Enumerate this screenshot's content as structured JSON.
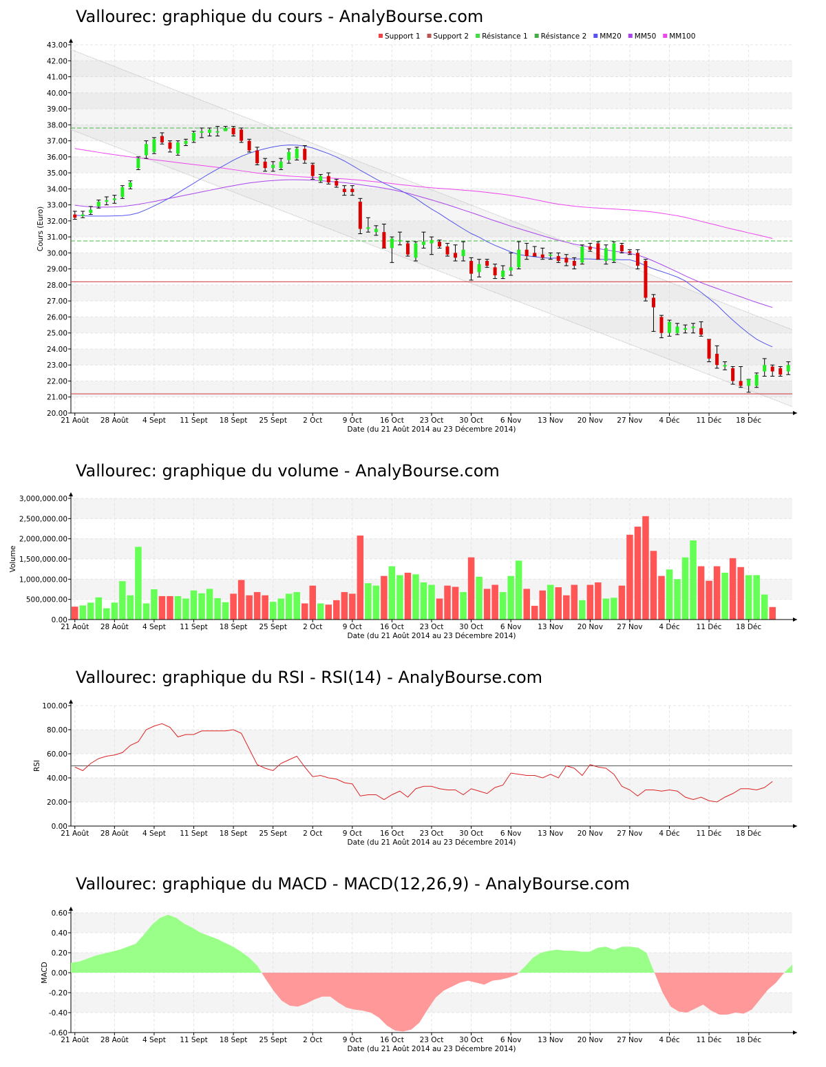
{
  "x_axis": {
    "ticks": [
      "21 Août",
      "28 Août",
      "4 Sept",
      "11 Sept",
      "18 Sept",
      "25 Sept",
      "2 Oct",
      "9 Oct",
      "16 Oct",
      "23 Oct",
      "30 Oct",
      "6 Nov",
      "13 Nov",
      "20 Nov",
      "27 Nov",
      "4 Déc",
      "11 Déc",
      "18 Déc"
    ],
    "label": "Date (du 21 Août 2014 au 23 Décembre 2014)"
  },
  "colors": {
    "up": "#22ee22",
    "down": "#dd0000",
    "vol_up": "#66ff55",
    "vol_down": "#ff5555",
    "rsi": "#dd2222",
    "macd_pos": "#99ff88",
    "macd_neg": "#ff9999",
    "mm20": "#5555ee",
    "mm50": "#aa44ee",
    "mm100": "#ee44ee",
    "support": "#cc3333",
    "resistance": "#44bb44"
  },
  "price_chart": {
    "title": "Vallourec: graphique du cours - AnalyBourse.com",
    "ylabel": "Cours (Euro)",
    "legend": [
      "Support 1",
      "Support 2",
      "Résistance 1",
      "Résistance 2",
      "MM20",
      "MM50",
      "MM100"
    ],
    "y_ticks": [
      "20.00",
      "21.00",
      "22.00",
      "23.00",
      "24.00",
      "25.00",
      "26.00",
      "27.00",
      "28.00",
      "29.00",
      "30.00",
      "31.00",
      "32.00",
      "33.00",
      "34.00",
      "35.00",
      "36.00",
      "37.00",
      "38.00",
      "39.00",
      "40.00",
      "41.00",
      "42.00",
      "43.00"
    ]
  },
  "volume_chart": {
    "title": "Vallourec: graphique du volume - AnalyBourse.com",
    "ylabel": "Volume",
    "y_ticks": [
      "0.00",
      "500,000.00",
      "1,000,000.00",
      "1,500,000.00",
      "2,000,000.00",
      "2,500,000.00",
      "3,000,000.00"
    ]
  },
  "rsi_chart": {
    "title": "Vallourec: graphique du RSI - RSI(14) - AnalyBourse.com",
    "ylabel": "RSI",
    "y_ticks": [
      "0.00",
      "20.00",
      "40.00",
      "60.00",
      "80.00",
      "100.00"
    ]
  },
  "macd_chart": {
    "title": "Vallourec: graphique du MACD - MACD(12,26,9) - AnalyBourse.com",
    "ylabel": "MACD",
    "y_ticks": [
      "-0.60",
      "-0.40",
      "-0.20",
      "0.00",
      "0.20",
      "0.40",
      "0.60"
    ]
  },
  "chart_data": [
    {
      "type": "candlestick",
      "title": "Vallourec: graphique du cours - AnalyBourse.com",
      "xlabel": "Date (du 21 Août 2014 au 23 Décembre 2014)",
      "ylabel": "Cours (Euro)",
      "ylim": [
        20,
        43
      ],
      "ohlc": [
        [
          32.4,
          32.6,
          32.1,
          32.2
        ],
        [
          32.3,
          32.6,
          32.2,
          32.4
        ],
        [
          32.5,
          32.9,
          32.4,
          32.7
        ],
        [
          32.9,
          33.3,
          32.8,
          33.2
        ],
        [
          33.2,
          33.5,
          33.0,
          33.3
        ],
        [
          33.3,
          33.6,
          33.1,
          33.4
        ],
        [
          33.5,
          34.2,
          33.4,
          34.1
        ],
        [
          34.1,
          34.5,
          34.0,
          34.4
        ],
        [
          35.3,
          36.0,
          35.2,
          35.9
        ],
        [
          36.1,
          37.0,
          35.9,
          36.8
        ],
        [
          36.3,
          37.2,
          36.2,
          37.1
        ],
        [
          37.3,
          37.5,
          36.8,
          36.9
        ],
        [
          36.9,
          37.0,
          36.3,
          36.5
        ],
        [
          36.2,
          37.0,
          36.1,
          36.9
        ],
        [
          36.8,
          37.1,
          36.7,
          37.0
        ],
        [
          37.0,
          37.6,
          36.9,
          37.5
        ],
        [
          37.5,
          37.8,
          37.2,
          37.6
        ],
        [
          37.5,
          37.8,
          37.3,
          37.7
        ],
        [
          37.6,
          37.9,
          37.3,
          37.6
        ],
        [
          37.6,
          37.9,
          37.7,
          37.8
        ],
        [
          37.8,
          37.9,
          37.3,
          37.4
        ],
        [
          37.7,
          37.8,
          36.9,
          37.0
        ],
        [
          37.0,
          37.1,
          36.3,
          36.4
        ],
        [
          36.4,
          36.6,
          35.5,
          35.6
        ],
        [
          35.7,
          35.9,
          35.1,
          35.3
        ],
        [
          35.3,
          35.7,
          35.1,
          35.5
        ],
        [
          35.3,
          35.9,
          35.2,
          35.7
        ],
        [
          35.8,
          36.5,
          35.6,
          36.3
        ],
        [
          35.9,
          36.6,
          35.8,
          36.5
        ],
        [
          36.5,
          36.7,
          35.6,
          35.8
        ],
        [
          35.5,
          35.6,
          34.6,
          34.8
        ],
        [
          34.5,
          34.9,
          34.4,
          34.8
        ],
        [
          34.8,
          35.0,
          34.3,
          34.4
        ],
        [
          34.5,
          34.6,
          34.1,
          34.2
        ],
        [
          34.0,
          34.2,
          33.6,
          33.8
        ],
        [
          34.0,
          34.2,
          33.6,
          33.8
        ],
        [
          33.2,
          33.4,
          31.2,
          31.5
        ],
        [
          31.5,
          32.2,
          31.3,
          31.6
        ],
        [
          31.3,
          31.7,
          31.1,
          31.5
        ],
        [
          31.3,
          31.8,
          30.3,
          30.3
        ],
        [
          30.3,
          31.0,
          29.4,
          30.9
        ],
        [
          30.8,
          31.3,
          30.5,
          30.8
        ],
        [
          30.6,
          30.7,
          29.8,
          29.9
        ],
        [
          29.7,
          30.7,
          29.5,
          30.6
        ],
        [
          30.5,
          31.3,
          30.3,
          30.7
        ],
        [
          30.6,
          31.0,
          29.9,
          30.8
        ],
        [
          30.7,
          30.8,
          30.3,
          30.4
        ],
        [
          30.4,
          30.6,
          29.8,
          29.9
        ],
        [
          30.0,
          30.5,
          29.5,
          29.7
        ],
        [
          29.8,
          30.7,
          29.5,
          30.2
        ],
        [
          29.5,
          29.7,
          28.3,
          28.7
        ],
        [
          28.8,
          29.6,
          28.5,
          29.3
        ],
        [
          29.5,
          29.6,
          29.1,
          29.2
        ],
        [
          29.1,
          29.3,
          28.4,
          28.6
        ],
        [
          28.5,
          29.2,
          28.4,
          28.9
        ],
        [
          28.9,
          30.0,
          28.6,
          29.1
        ],
        [
          29.1,
          30.7,
          29.0,
          30.2
        ],
        [
          30.2,
          30.6,
          29.6,
          29.8
        ],
        [
          30.0,
          30.4,
          29.8,
          29.8
        ],
        [
          29.9,
          30.3,
          29.6,
          29.7
        ],
        [
          29.9,
          30.0,
          29.6,
          29.9
        ],
        [
          29.8,
          30.0,
          29.4,
          29.5
        ],
        [
          29.7,
          29.9,
          29.2,
          29.4
        ],
        [
          29.5,
          29.7,
          29.0,
          29.2
        ],
        [
          29.4,
          30.5,
          29.3,
          30.4
        ],
        [
          30.4,
          30.6,
          30.1,
          30.2
        ],
        [
          30.6,
          30.7,
          29.6,
          29.6
        ],
        [
          29.5,
          30.5,
          29.3,
          30.3
        ],
        [
          29.5,
          30.7,
          29.4,
          30.6
        ],
        [
          30.5,
          30.6,
          30.0,
          30.1
        ],
        [
          30.1,
          30.2,
          29.9,
          30.0
        ],
        [
          30.0,
          30.2,
          29.0,
          29.2
        ],
        [
          29.5,
          29.6,
          27.0,
          27.2
        ],
        [
          27.2,
          27.4,
          25.1,
          26.6
        ],
        [
          26.0,
          26.1,
          24.7,
          25.0
        ],
        [
          25.0,
          25.8,
          24.8,
          25.7
        ],
        [
          25.0,
          25.6,
          24.9,
          25.4
        ],
        [
          25.2,
          25.5,
          25.0,
          25.3
        ],
        [
          25.3,
          25.6,
          25.0,
          25.4
        ],
        [
          25.3,
          25.7,
          24.8,
          24.9
        ],
        [
          24.6,
          24.6,
          23.2,
          23.4
        ],
        [
          23.7,
          24.2,
          22.8,
          23.0
        ],
        [
          22.9,
          23.2,
          22.7,
          23.0
        ],
        [
          22.8,
          22.9,
          21.8,
          22.0
        ],
        [
          22.0,
          22.9,
          21.6,
          21.7
        ],
        [
          21.7,
          22.1,
          21.3,
          22.1
        ],
        [
          21.7,
          22.5,
          21.6,
          22.4
        ],
        [
          22.6,
          23.4,
          22.3,
          23.0
        ],
        [
          22.9,
          23.0,
          22.3,
          22.6
        ],
        [
          22.8,
          22.9,
          22.3,
          22.4
        ],
        [
          22.6,
          23.2,
          22.4,
          23.0
        ]
      ],
      "mm20": [
        32.35,
        32.32,
        32.3,
        32.3,
        32.3,
        32.31,
        32.33,
        32.38,
        32.5,
        32.7,
        32.93,
        33.18,
        33.45,
        33.75,
        34.05,
        34.35,
        34.66,
        34.96,
        35.24,
        35.51,
        35.79,
        36.03,
        36.22,
        36.38,
        36.51,
        36.62,
        36.7,
        36.74,
        36.73,
        36.67,
        36.55,
        36.38,
        36.2,
        35.99,
        35.74,
        35.46,
        35.16,
        34.89,
        34.61,
        34.35,
        34.12,
        33.92,
        33.67,
        33.41,
        33.06,
        32.74,
        32.45,
        32.12,
        31.81,
        31.5,
        31.21,
        30.98,
        30.7,
        30.47,
        30.27,
        30.06,
        29.9,
        29.82,
        29.76,
        29.7,
        29.67,
        29.68,
        29.64,
        29.62,
        29.63,
        29.62,
        29.6,
        29.6,
        29.59,
        29.57,
        29.57,
        29.43,
        29.2,
        29.0,
        28.84,
        28.67,
        28.49,
        28.25,
        27.89,
        27.54,
        27.15,
        26.75,
        26.26,
        25.8,
        25.37,
        24.97,
        24.61,
        24.35,
        24.13
      ],
      "mm50": [
        32.98,
        32.92,
        32.88,
        32.86,
        32.86,
        32.87,
        32.9,
        32.96,
        33.03,
        33.12,
        33.21,
        33.31,
        33.41,
        33.51,
        33.61,
        33.71,
        33.81,
        33.91,
        34.01,
        34.11,
        34.2,
        34.29,
        34.37,
        34.43,
        34.48,
        34.52,
        34.55,
        34.57,
        34.57,
        34.56,
        34.54,
        34.51,
        34.47,
        34.43,
        34.39,
        34.33,
        34.26,
        34.19,
        34.12,
        34.04,
        33.95,
        33.85,
        33.73,
        33.59,
        33.45,
        33.31,
        33.16,
        33.01,
        32.85,
        32.68,
        32.52,
        32.35,
        32.17,
        32.0,
        31.84,
        31.67,
        31.52,
        31.37,
        31.22,
        31.07,
        30.93,
        30.79,
        30.67,
        30.55,
        30.45,
        30.36,
        30.27,
        30.19,
        30.11,
        30.04,
        29.97,
        29.86,
        29.7,
        29.49,
        29.27,
        29.04,
        28.81,
        28.57,
        28.35,
        28.14,
        27.96,
        27.78,
        27.6,
        27.43,
        27.26,
        27.08,
        26.91,
        26.75,
        26.59
      ],
      "mm100": [
        36.52,
        36.44,
        36.36,
        36.28,
        36.2,
        36.13,
        36.06,
        36.0,
        35.94,
        35.88,
        35.82,
        35.76,
        35.7,
        35.64,
        35.58,
        35.52,
        35.46,
        35.4,
        35.34,
        35.27,
        35.2,
        35.13,
        35.06,
        34.99,
        34.94,
        34.89,
        34.84,
        34.8,
        34.77,
        34.74,
        34.72,
        34.7,
        34.68,
        34.65,
        34.62,
        34.58,
        34.54,
        34.49,
        34.44,
        34.39,
        34.33,
        34.27,
        34.22,
        34.16,
        34.11,
        34.07,
        34.03,
        34.0,
        33.96,
        33.92,
        33.88,
        33.83,
        33.78,
        33.72,
        33.66,
        33.59,
        33.51,
        33.43,
        33.33,
        33.23,
        33.13,
        33.04,
        32.98,
        32.92,
        32.87,
        32.83,
        32.8,
        32.77,
        32.74,
        32.71,
        32.68,
        32.64,
        32.6,
        32.55,
        32.48,
        32.4,
        32.32,
        32.22,
        32.1,
        31.97,
        31.85,
        31.73,
        31.6,
        31.48,
        31.37,
        31.25,
        31.14,
        31.02,
        30.9
      ],
      "support": [
        28.2,
        21.2
      ],
      "resistance": [
        30.75,
        37.8
      ],
      "channel": {
        "upper": [
          42.7,
          25.2
        ],
        "lower": [
          37.7,
          20.4
        ]
      }
    },
    {
      "type": "bar",
      "title": "Vallourec: graphique du volume - AnalyBourse.com",
      "xlabel": "Date (du 21 Août 2014 au 23 Décembre 2014)",
      "ylabel": "Volume",
      "ylim": [
        0,
        3000000
      ],
      "values": [
        320000,
        350000,
        420000,
        550000,
        280000,
        420000,
        950000,
        600000,
        1800000,
        400000,
        750000,
        580000,
        580000,
        580000,
        520000,
        720000,
        650000,
        760000,
        530000,
        430000,
        640000,
        980000,
        600000,
        680000,
        600000,
        440000,
        520000,
        640000,
        680000,
        400000,
        840000,
        400000,
        370000,
        480000,
        680000,
        640000,
        2080000,
        900000,
        840000,
        1080000,
        1320000,
        1100000,
        1160000,
        1120000,
        920000,
        860000,
        520000,
        840000,
        810000,
        680000,
        1540000,
        1060000,
        760000,
        860000,
        680000,
        1080000,
        1460000,
        760000,
        340000,
        720000,
        860000,
        800000,
        600000,
        860000,
        480000,
        860000,
        920000,
        520000,
        540000,
        840000,
        2100000,
        2300000,
        2560000,
        1700000,
        1080000,
        1240000,
        1000000,
        1540000,
        1960000,
        1320000,
        960000,
        1320000,
        1160000,
        1520000,
        1300000,
        1100000,
        1100000,
        620000,
        310000
      ]
    },
    {
      "type": "line",
      "title": "Vallourec: graphique du RSI - RSI(14) - AnalyBourse.com",
      "xlabel": "Date (du 21 Août 2014 au 23 Décembre 2014)",
      "ylabel": "RSI",
      "ylim": [
        0,
        100
      ],
      "reference_line": 50,
      "values": [
        49,
        46,
        52,
        56,
        58,
        59,
        61,
        67,
        70,
        80,
        83,
        85,
        82,
        74,
        76,
        76,
        79,
        79,
        79,
        79,
        80,
        77,
        64,
        51,
        48,
        46,
        52,
        55,
        58,
        49,
        41,
        42,
        40,
        39,
        36,
        35,
        25,
        26,
        26,
        22,
        26,
        29,
        24,
        31,
        33,
        33,
        31,
        30,
        30,
        26,
        31,
        29,
        27,
        32,
        34,
        44,
        43,
        42,
        42,
        40,
        43,
        40,
        50,
        48,
        42,
        51,
        49,
        48,
        43,
        33,
        30,
        25,
        30,
        30,
        29,
        30,
        29,
        24,
        22,
        24,
        21,
        20,
        24,
        27,
        31,
        31,
        30,
        32,
        37
      ]
    },
    {
      "type": "area",
      "title": "Vallourec: graphique du MACD - MACD(12,26,9) - AnalyBourse.com",
      "xlabel": "Date (du 21 Août 2014 au 23 Décembre 2014)",
      "ylabel": "MACD",
      "ylim": [
        -0.6,
        0.6
      ],
      "values": [
        0.1,
        0.11,
        0.14,
        0.17,
        0.19,
        0.21,
        0.23,
        0.26,
        0.29,
        0.38,
        0.48,
        0.55,
        0.58,
        0.55,
        0.49,
        0.45,
        0.4,
        0.37,
        0.34,
        0.3,
        0.26,
        0.21,
        0.15,
        0.07,
        -0.06,
        -0.18,
        -0.28,
        -0.33,
        -0.34,
        -0.31,
        -0.27,
        -0.24,
        -0.24,
        -0.3,
        -0.35,
        -0.37,
        -0.38,
        -0.4,
        -0.45,
        -0.53,
        -0.58,
        -0.59,
        -0.57,
        -0.5,
        -0.37,
        -0.25,
        -0.18,
        -0.14,
        -0.1,
        -0.08,
        -0.1,
        -0.12,
        -0.08,
        -0.07,
        -0.05,
        -0.02,
        0.06,
        0.15,
        0.2,
        0.22,
        0.23,
        0.22,
        0.22,
        0.21,
        0.21,
        0.25,
        0.26,
        0.23,
        0.26,
        0.26,
        0.25,
        0.2,
        0.0,
        -0.2,
        -0.34,
        -0.39,
        -0.4,
        -0.36,
        -0.32,
        -0.38,
        -0.42,
        -0.42,
        -0.4,
        -0.41,
        -0.37,
        -0.27,
        -0.17,
        -0.1,
        0.0,
        0.08
      ]
    }
  ]
}
